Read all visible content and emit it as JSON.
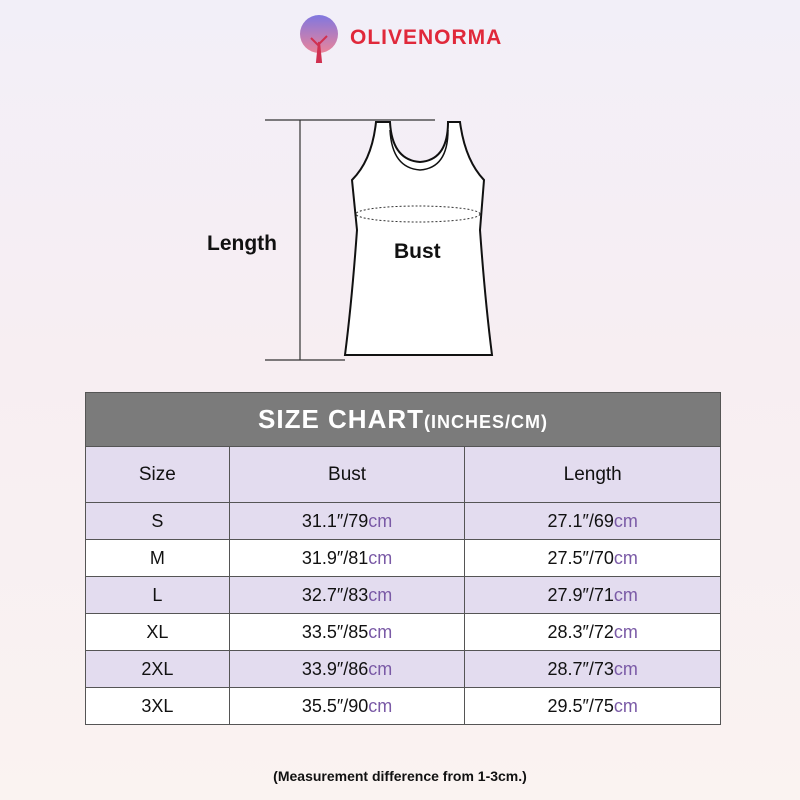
{
  "brand": {
    "name": "OLIVENORMA",
    "color": "#e0283a"
  },
  "diagram": {
    "length_label": "Length",
    "bust_label": "Bust"
  },
  "table": {
    "title": "SIZE CHART",
    "title_units": "(INCHES/CM)",
    "columns": [
      "Size",
      "Bust",
      "Length"
    ],
    "unit_inch": "″",
    "unit_cm": "cm",
    "rows": [
      {
        "size": "S",
        "bust_in": "31.1",
        "bust_cm": "79",
        "length_in": "27.1",
        "length_cm": "69"
      },
      {
        "size": "M",
        "bust_in": "31.9",
        "bust_cm": "81",
        "length_in": "27.5",
        "length_cm": "70"
      },
      {
        "size": "L",
        "bust_in": "32.7",
        "bust_cm": "83",
        "length_in": "27.9",
        "length_cm": "71"
      },
      {
        "size": "XL",
        "bust_in": "33.5",
        "bust_cm": "85",
        "length_in": "28.3",
        "length_cm": "72"
      },
      {
        "size": "2XL",
        "bust_in": "33.9",
        "bust_cm": "86",
        "length_in": "28.7",
        "length_cm": "73"
      },
      {
        "size": "3XL",
        "bust_in": "35.5",
        "bust_cm": "90",
        "length_in": "29.5",
        "length_cm": "75"
      }
    ]
  },
  "note": "(Measurement difference from 1-3cm.)"
}
